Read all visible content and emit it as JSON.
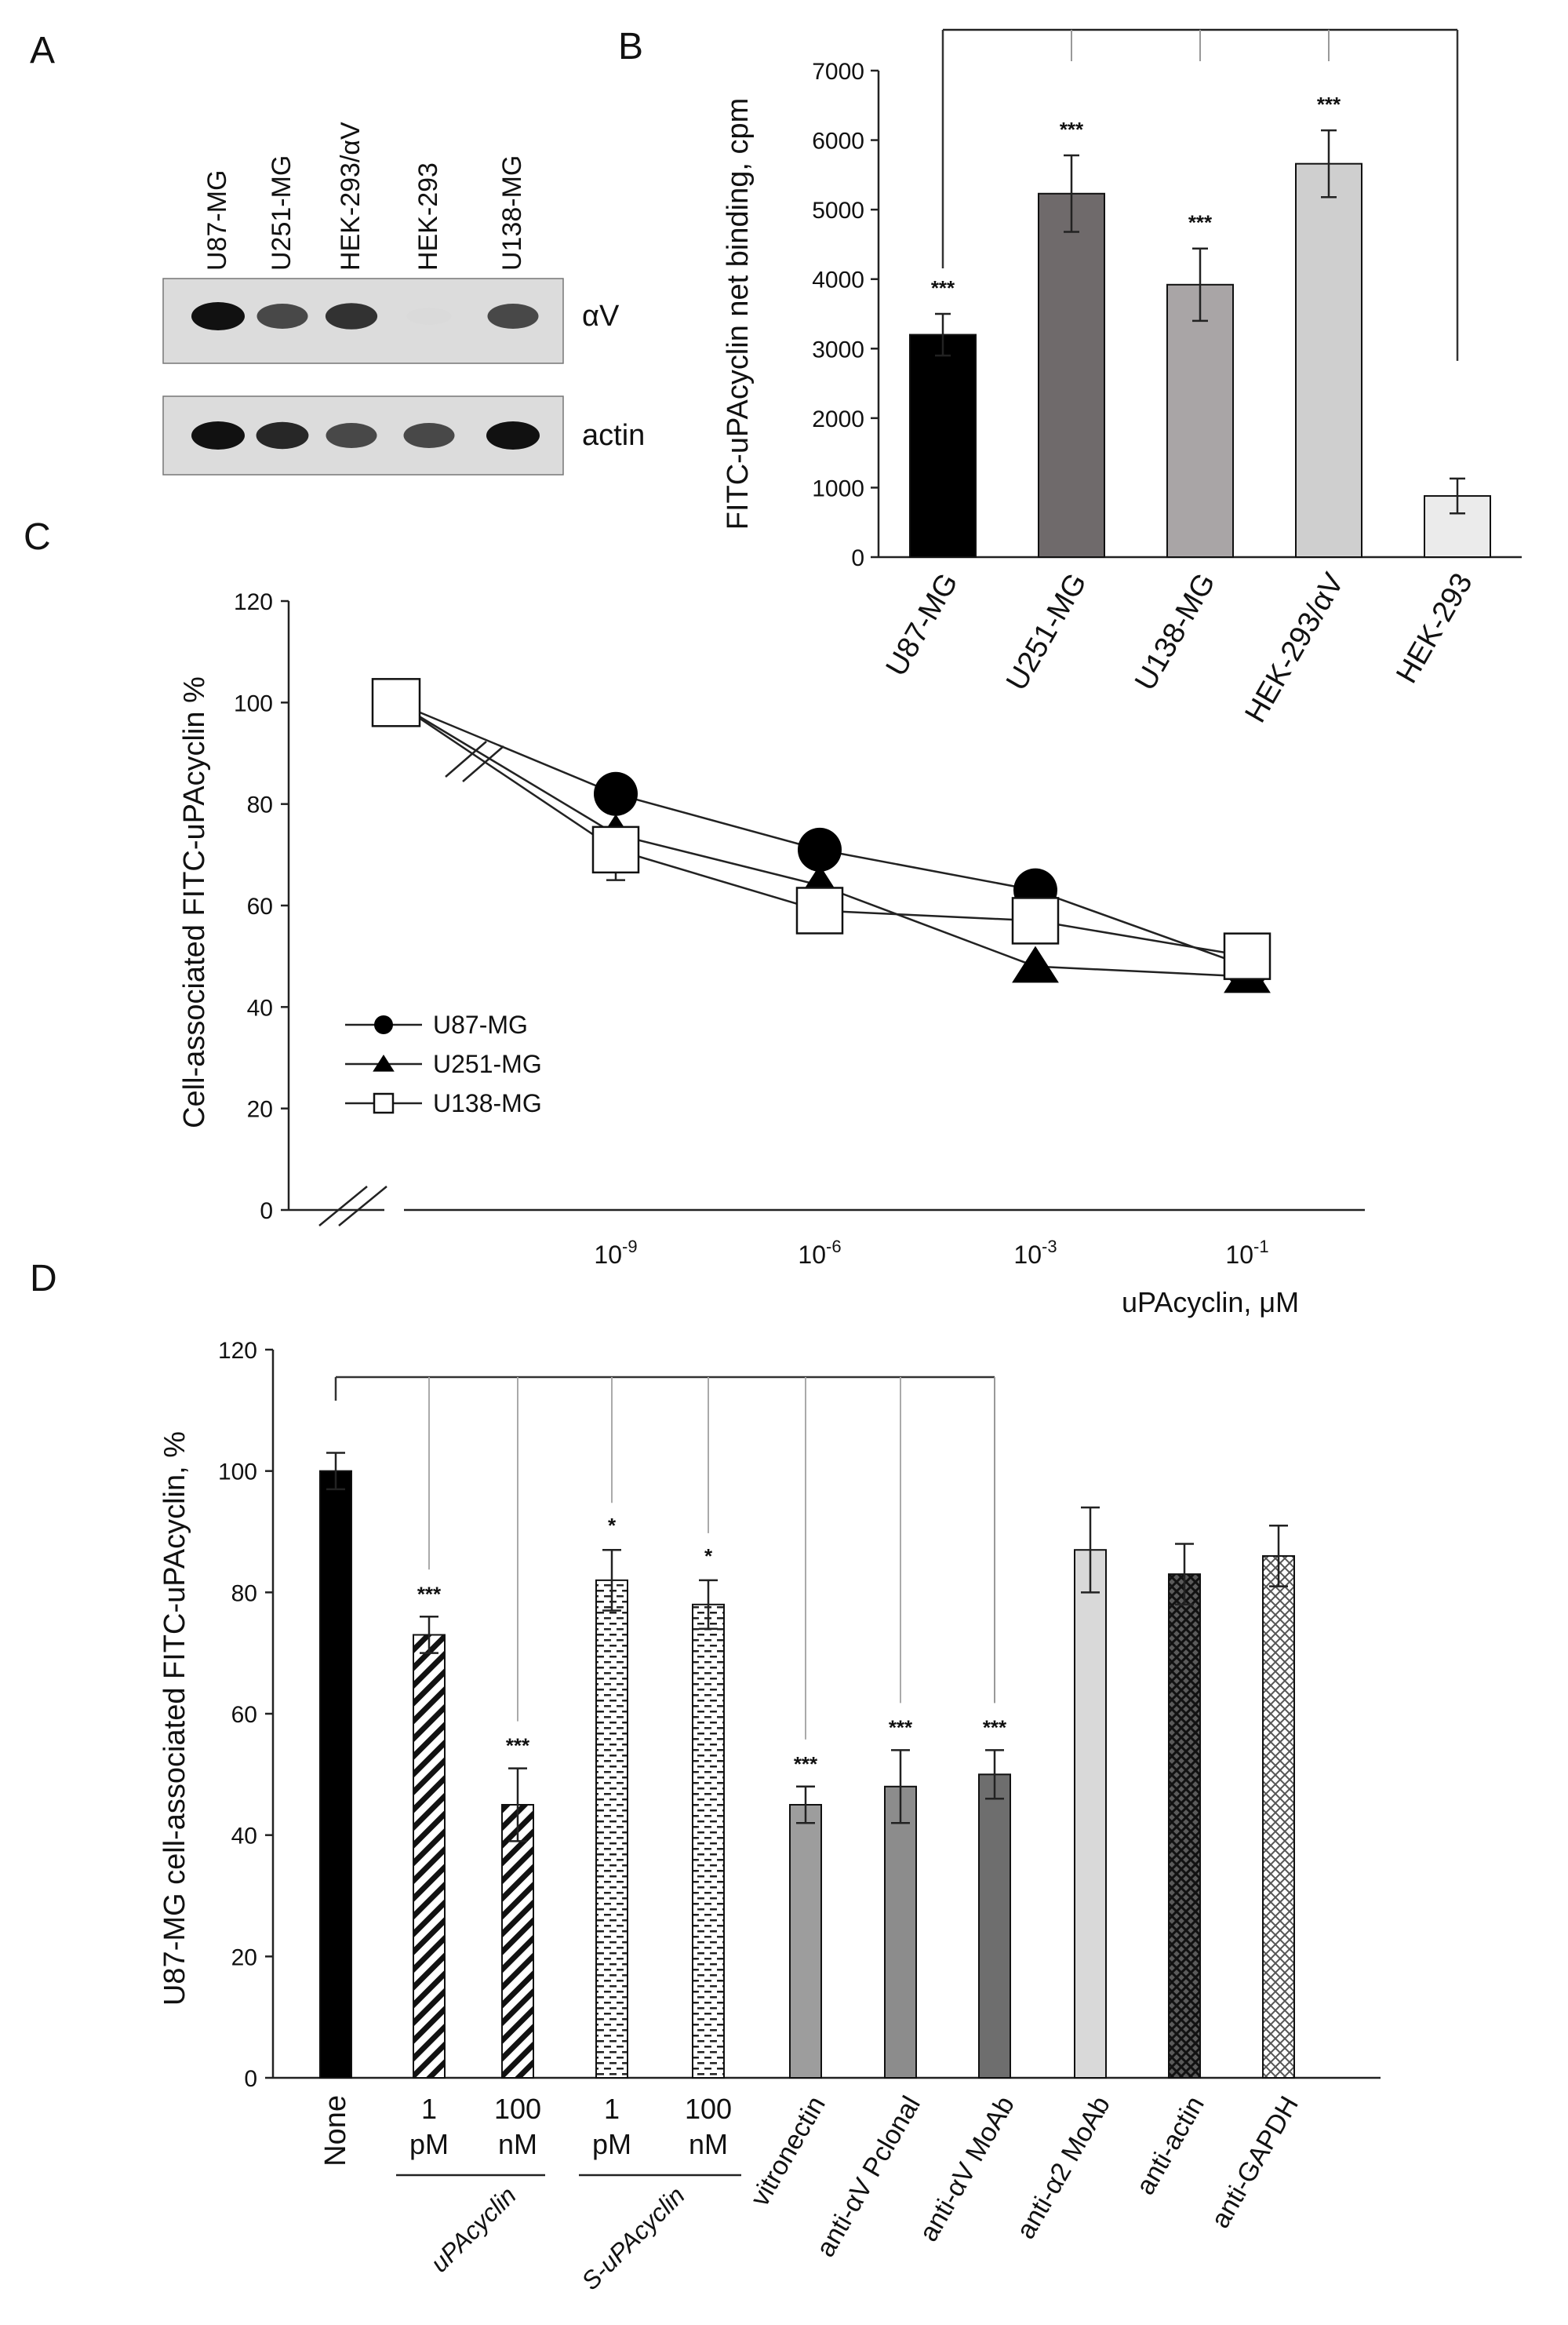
{
  "panels": {
    "A": "A",
    "B": "B",
    "C": "C",
    "D": "D"
  },
  "blot": {
    "lanes": [
      "U87-MG",
      "U251-MG",
      "HEK-293/αV",
      "HEK-293",
      "U138-MG"
    ],
    "rows": [
      {
        "label": "αV",
        "intensity": [
          1.0,
          0.75,
          0.85,
          0.08,
          0.75
        ]
      },
      {
        "label": "actin",
        "intensity": [
          1.0,
          0.9,
          0.75,
          0.75,
          1.0
        ]
      }
    ]
  },
  "chart_data": [
    {
      "id": "B",
      "type": "bar",
      "title": "",
      "ylabel": "FITC-uPAcyclin net binding, cpm",
      "xlabel": "",
      "ylim": [
        0,
        7000
      ],
      "yticks": [
        "0",
        "1000",
        "2000",
        "3000",
        "4000",
        "5000",
        "6000",
        "7000"
      ],
      "categories": [
        "U87-MG",
        "U251-MG",
        "U138-MG",
        "HEK-293/αV",
        "HEK-293"
      ],
      "values": [
        3200,
        5230,
        3920,
        5660,
        880
      ],
      "errors": [
        300,
        550,
        520,
        480,
        250
      ],
      "colors": [
        "#000000",
        "#6f6a6b",
        "#a9a5a6",
        "#cfcfcf",
        "#ebebeb"
      ],
      "significance": [
        "***",
        "***",
        "***",
        "***",
        ""
      ]
    },
    {
      "id": "C",
      "type": "line",
      "ylabel": "Cell-associated FITC-uPAcyclin %",
      "xlabel": "uPAcyclin, μM",
      "ylim": [
        0,
        120
      ],
      "yticks": [
        "0",
        "20",
        "40",
        "60",
        "80",
        "100",
        "120"
      ],
      "x_points": [
        "0",
        "10-9",
        "10-6",
        "10-3",
        "10-1"
      ],
      "xtick_labels": [
        {
          "base": "10",
          "exp": "-9"
        },
        {
          "base": "10",
          "exp": "-6"
        },
        {
          "base": "10",
          "exp": "-3"
        },
        {
          "base": "10",
          "exp": "-1"
        }
      ],
      "series": [
        {
          "name": "U87-MG",
          "marker": "circle",
          "values": [
            100,
            82,
            71,
            63,
            48
          ]
        },
        {
          "name": "U251-MG",
          "marker": "triangle",
          "values": [
            100,
            74,
            64,
            48,
            46
          ]
        },
        {
          "name": "U138-MG",
          "marker": "square",
          "values": [
            100,
            71,
            59,
            57,
            50
          ]
        }
      ],
      "error": {
        "series": "U138-MG",
        "point": 1,
        "value": 6
      },
      "legend_position": "bottom-left"
    },
    {
      "id": "D",
      "type": "bar",
      "ylabel": "U87-MG cell-associated FITC-uPAcyclin,  %",
      "ylim": [
        0,
        120
      ],
      "yticks": [
        "0",
        "20",
        "40",
        "60",
        "80",
        "100",
        "120"
      ],
      "categories": [
        "None",
        "1 pM",
        "100 nM",
        "1 pM",
        "100 nM",
        "vitronectin",
        "anti-αV Pclonal",
        "anti-αV MoAb",
        "anti-α2 MoAb",
        "anti-actin",
        "anti-GAPDH"
      ],
      "values": [
        100,
        73,
        45,
        82,
        78,
        45,
        48,
        50,
        87,
        83,
        86
      ],
      "errors": [
        3,
        3,
        6,
        5,
        4,
        3,
        6,
        4,
        7,
        5,
        5
      ],
      "patterns": [
        "black",
        "diag",
        "diag",
        "dash",
        "dash",
        "gray1",
        "gray2",
        "gray3",
        "light",
        "cross",
        "crosslight"
      ],
      "significance": [
        "",
        "***",
        "***",
        "*",
        "*",
        "***",
        "***",
        "***",
        "",
        "",
        ""
      ],
      "group_labels": [
        "uPAcyclin",
        "S-uPAcyclin"
      ],
      "tick_rows": [
        {
          "top": "",
          "bottom": "None"
        },
        {
          "top": "1",
          "bottom": "pM"
        },
        {
          "top": "100",
          "bottom": "nM"
        },
        {
          "top": "1",
          "bottom": "pM"
        },
        {
          "top": "100",
          "bottom": "nM"
        }
      ]
    }
  ]
}
